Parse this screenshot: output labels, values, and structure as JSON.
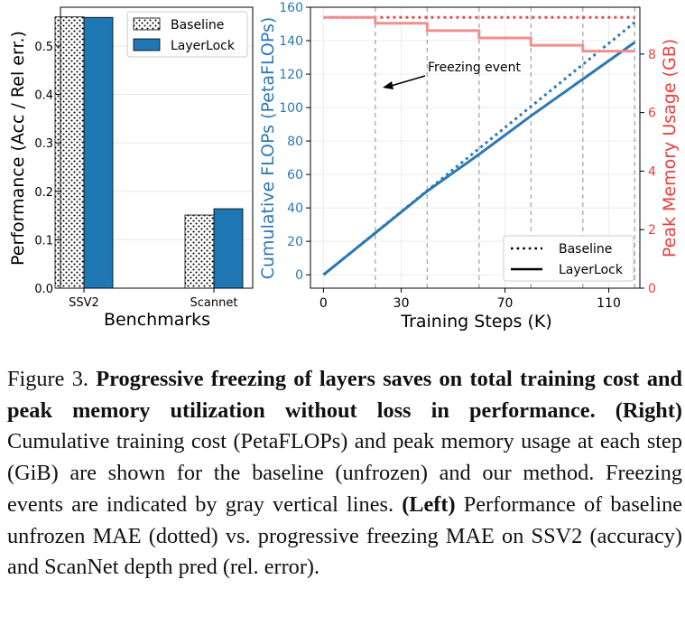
{
  "chart_data": [
    {
      "type": "bar",
      "xlabel": "Benchmarks",
      "ylabel": "Performance (Acc / Rel err.)",
      "categories": [
        "SSV2",
        "Scannet"
      ],
      "ylim": [
        0,
        0.58
      ],
      "yticks": [
        "0.0",
        "0.1",
        "0.2",
        "0.3",
        "0.4",
        "0.5"
      ],
      "series": [
        {
          "name": "Baseline",
          "style": "dotted-white",
          "values": [
            0.56,
            0.151
          ]
        },
        {
          "name": "LayerLock",
          "color": "#1f77b4",
          "values": [
            0.559,
            0.164
          ]
        }
      ],
      "legend": "top-right"
    },
    {
      "type": "line",
      "xlabel": "Training Steps (K)",
      "ylabel": "Cumulative FLOPs (PetaFLOPs)",
      "ylabel_right": "Peak Memory Usage (GB)",
      "xlim": [
        -5,
        122
      ],
      "ylim": [
        -8,
        160
      ],
      "ylim_right": [
        0,
        9.6
      ],
      "xticks": [
        "0",
        "30",
        "70",
        "110"
      ],
      "xtick_values": [
        0,
        30,
        70,
        110
      ],
      "yticks": [
        "0",
        "20",
        "40",
        "60",
        "80",
        "100",
        "120",
        "140",
        "160"
      ],
      "yticks_right": [
        "0",
        "2",
        "4",
        "6",
        "8"
      ],
      "freezing_events": [
        20,
        40,
        60,
        80,
        100,
        120
      ],
      "annotation": "Freezing event",
      "series": [
        {
          "name": "Baseline",
          "axis": "left",
          "style": "dotted",
          "color": "#2e78b4",
          "x": [
            0,
            120
          ],
          "y": [
            0,
            151
          ]
        },
        {
          "name": "LayerLock",
          "axis": "left",
          "style": "solid",
          "color": "#2e78b4",
          "x": [
            0,
            20,
            40,
            60,
            80,
            100,
            120
          ],
          "y": [
            0,
            25,
            50,
            72,
            95,
            117,
            139
          ]
        },
        {
          "name": "Baseline",
          "axis": "right",
          "style": "dotted",
          "color": "#e84b4b",
          "x": [
            0,
            120
          ],
          "y": [
            9.25,
            9.25
          ]
        },
        {
          "name": "LayerLock",
          "axis": "right",
          "style": "solid",
          "color": "#f08f8f",
          "x": [
            0,
            20,
            20,
            40,
            40,
            60,
            60,
            80,
            80,
            100,
            100,
            120
          ],
          "y": [
            9.25,
            9.25,
            9.05,
            9.05,
            8.8,
            8.8,
            8.55,
            8.55,
            8.3,
            8.3,
            8.1,
            8.1
          ]
        }
      ],
      "legend": "bottom-right"
    }
  ],
  "caption": {
    "label": "Figure 3.",
    "title": "Progressive freezing of layers saves on total training cost and peak memory utilization without loss in performance.",
    "right_tag": "(Right)",
    "right_text": "Cumulative training cost (PetaFLOPs) and peak memory usage at each step (GiB) are shown for the baseline (unfrozen) and our method.  Freezing events are indicated by gray vertical lines.",
    "left_tag": "(Left)",
    "left_text": "Performance of baseline unfrozen MAE (dotted) vs. progressive freezing MAE on SSV2 (accuracy) and ScanNet depth pred (rel. error)."
  }
}
